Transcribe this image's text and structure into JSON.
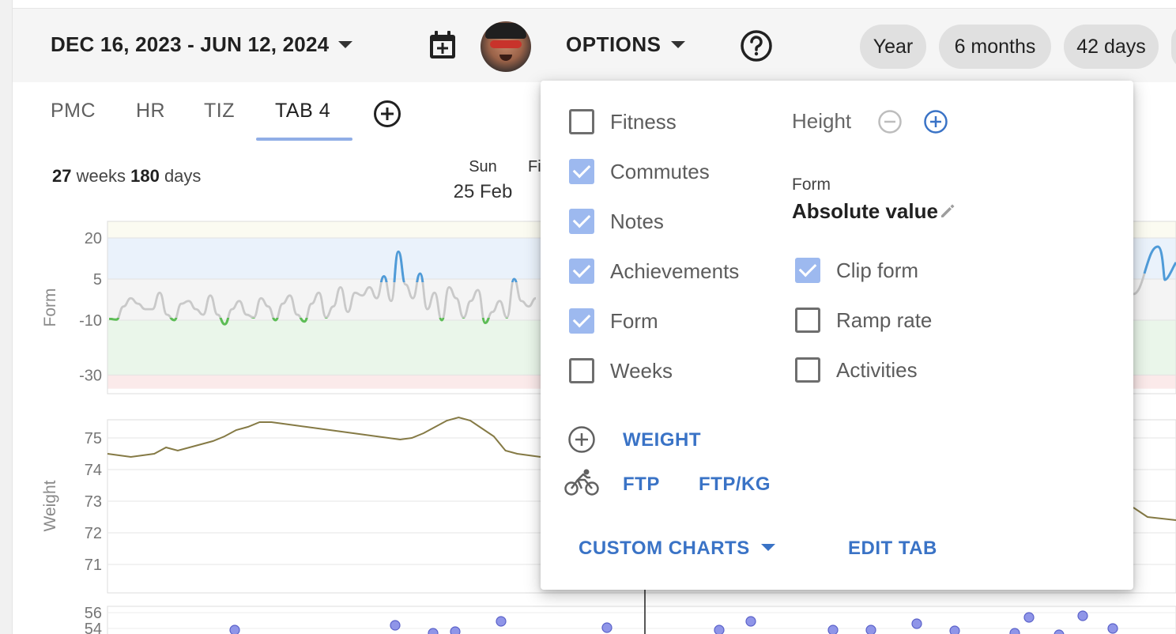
{
  "header": {
    "date_range": "DEC 16, 2023 - JUN 12, 2024",
    "options_label": "OPTIONS",
    "range_pills": [
      "Year",
      "6 months",
      "42 days"
    ]
  },
  "tabs": [
    {
      "label": "PMC",
      "active": false
    },
    {
      "label": "HR",
      "active": false
    },
    {
      "label": "TIZ",
      "active": false
    },
    {
      "label": "TAB 4",
      "active": true
    }
  ],
  "summary": {
    "weeks_value": "27",
    "weeks_unit": "weeks",
    "days_value": "180",
    "days_unit": "days"
  },
  "cursor": {
    "dow": "Sun",
    "date": "25 Feb",
    "cut_text": "Fi"
  },
  "charts": {
    "form": {
      "ylabel": "Form",
      "ticks": [
        "20",
        "5",
        "-10",
        "-30"
      ]
    },
    "weight": {
      "ylabel": "Weight",
      "ticks": [
        "75",
        "74",
        "73",
        "72",
        "71"
      ]
    },
    "bottom": {
      "ticks": [
        "56",
        "54"
      ]
    }
  },
  "chart_data": [
    {
      "type": "line",
      "ylabel": "Form",
      "yticks": [
        20,
        5,
        -10,
        -30
      ],
      "zones": [
        {
          "from": 5,
          "to": 20,
          "color": "#eaf2fb"
        },
        {
          "from": -10,
          "to": 5,
          "color": "#f4f4f4"
        },
        {
          "from": -30,
          "to": -10,
          "color": "#eaf6ea"
        },
        {
          "from": -35,
          "to": -30,
          "color": "#fbeaea"
        },
        {
          "from": 20,
          "to": 27,
          "color": "#fbfbf1"
        }
      ],
      "series": [
        {
          "colors": {
            "neutral": "#c9c9c9",
            "fresh": "#4f9bd8",
            "optimal": "#5cbd55"
          },
          "y": [
            -9.5,
            -9.8,
            -5,
            -2,
            -4,
            -6,
            -6,
            0,
            -8,
            -10,
            -4,
            -3,
            -6,
            -8,
            -1,
            -8,
            -11.5,
            -6,
            -3,
            -8,
            -9,
            -2,
            -5,
            -10,
            -4,
            -1,
            -8,
            -10.5,
            -4,
            0,
            -9,
            -5,
            2,
            -7,
            0,
            -1,
            2,
            -2,
            6,
            -3,
            15,
            3,
            -2,
            7,
            -6,
            0,
            -10,
            2,
            -2,
            -9,
            -3,
            1,
            -11,
            -7,
            -3,
            -9,
            5,
            -3,
            -5,
            -2
          ]
        }
      ]
    },
    {
      "type": "line",
      "ylabel": "Weight",
      "yticks": [
        75,
        74,
        73,
        72,
        71
      ],
      "ylim": [
        70.1,
        75.6
      ],
      "series": [
        {
          "color": "#857a45",
          "y": [
            74.5,
            74.45,
            74.4,
            74.45,
            74.5,
            74.7,
            74.6,
            74.7,
            74.8,
            74.9,
            75.05,
            75.25,
            75.35,
            75.5,
            75.5,
            75.45,
            75.4,
            75.35,
            75.3,
            75.25,
            75.2,
            75.15,
            75.1,
            75.05,
            75,
            74.95,
            75,
            75.15,
            75.35,
            75.55,
            75.65,
            75.55,
            75.3,
            75.05,
            74.6,
            74.5,
            74.45,
            74.4
          ],
          "tail": [
            72.8,
            72.5,
            72.45,
            72.4
          ]
        }
      ]
    },
    {
      "type": "scatter",
      "yticks": [
        56,
        54
      ],
      "ylim": [
        52,
        57
      ],
      "point_color": "#8f95e8",
      "x": [
        297,
        500,
        548,
        576,
        634,
        768,
        910,
        950,
        1054,
        1102,
        1160,
        1208,
        1284,
        1302,
        1340,
        1370,
        1408
      ],
      "y": [
        53.8,
        54.4,
        53.4,
        53.6,
        54.9,
        54.1,
        53.8,
        54.9,
        53.8,
        53.8,
        54.6,
        53.7,
        53.4,
        55.4,
        53.2,
        55.6,
        54
      ]
    }
  ],
  "options_panel": {
    "left_checks": [
      {
        "label": "Fitness",
        "checked": false
      },
      {
        "label": "Commutes",
        "checked": true
      },
      {
        "label": "Notes",
        "checked": true
      },
      {
        "label": "Achievements",
        "checked": true
      },
      {
        "label": "Form",
        "checked": true
      },
      {
        "label": "Weeks",
        "checked": false
      }
    ],
    "height_label": "Height",
    "form_caption": "Form",
    "form_value": "Absolute value",
    "right_checks": [
      {
        "label": "Clip form",
        "checked": true
      },
      {
        "label": "Ramp rate",
        "checked": false
      },
      {
        "label": "Activities",
        "checked": false
      }
    ],
    "weight_link": "WEIGHT",
    "ftp_link": "FTP",
    "ftpkg_link": "FTP/KG",
    "custom_charts": "CUSTOM CHARTS",
    "edit_tab": "EDIT TAB"
  }
}
